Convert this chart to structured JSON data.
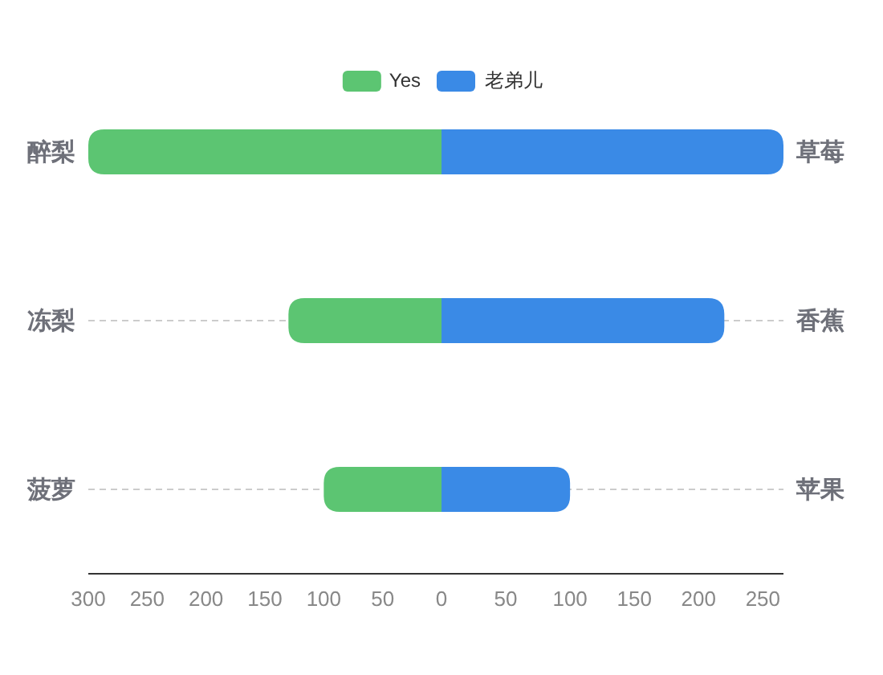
{
  "chart_data": [
    {
      "type": "bar",
      "orientation": "horizontal",
      "categories": [
        "醉梨",
        "冻梨",
        "菠萝"
      ],
      "series": [
        {
          "name": "Yes",
          "color": "#5cc572",
          "values": [
            300,
            130,
            100
          ]
        }
      ],
      "xlim": [
        300,
        0
      ],
      "xticks": [
        300,
        250,
        200,
        150,
        100,
        50,
        0
      ],
      "grid": "y",
      "legend": "top"
    },
    {
      "type": "bar",
      "orientation": "horizontal",
      "categories": [
        "草莓",
        "香蕉",
        "苹果"
      ],
      "series": [
        {
          "name": "老弟儿",
          "color": "#3a8ae6",
          "values": [
            266,
            220,
            100
          ]
        }
      ],
      "xlim": [
        0,
        266
      ],
      "xticks": [
        50,
        100,
        150,
        200,
        250
      ],
      "grid": "y",
      "legend": "top"
    }
  ]
}
